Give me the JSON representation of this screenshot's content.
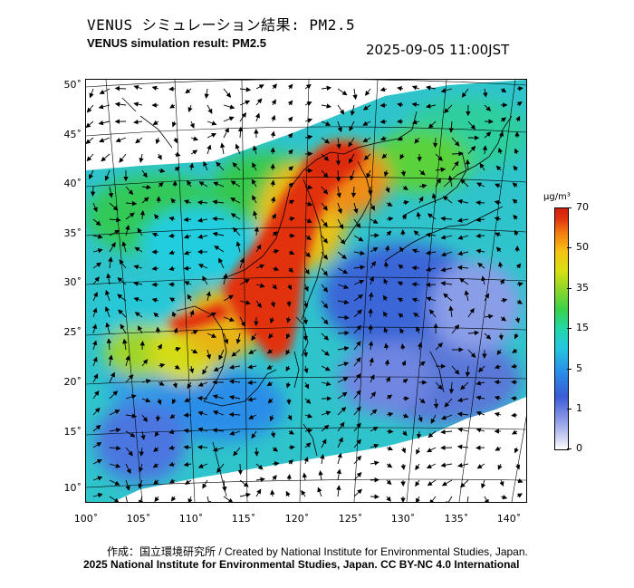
{
  "header": {
    "title_jp": "VENUS シミュレーション結果: PM2.5",
    "title_en": "VENUS simulation result: PM2.5",
    "timestamp": "2025-09-05 11:00JST"
  },
  "map": {
    "lat_labels": [
      "50˚",
      "45˚",
      "40˚",
      "35˚",
      "30˚",
      "25˚",
      "20˚",
      "15˚",
      "10˚"
    ],
    "lon_labels": [
      "100˚",
      "105˚",
      "110˚",
      "115˚",
      "120˚",
      "125˚",
      "130˚",
      "135˚",
      "140˚"
    ]
  },
  "colorbar": {
    "unit": "μg/m³",
    "levels": [
      "70",
      "50",
      "35",
      "15",
      "5",
      "1",
      "0"
    ]
  },
  "footer": {
    "credit": "作成：国立環境研究所 / Created by National Institute for Environmental Studies, Japan.",
    "license": "2025 National Institute for Environmental Studies, Japan. CC BY-NC 4.0 International"
  }
}
